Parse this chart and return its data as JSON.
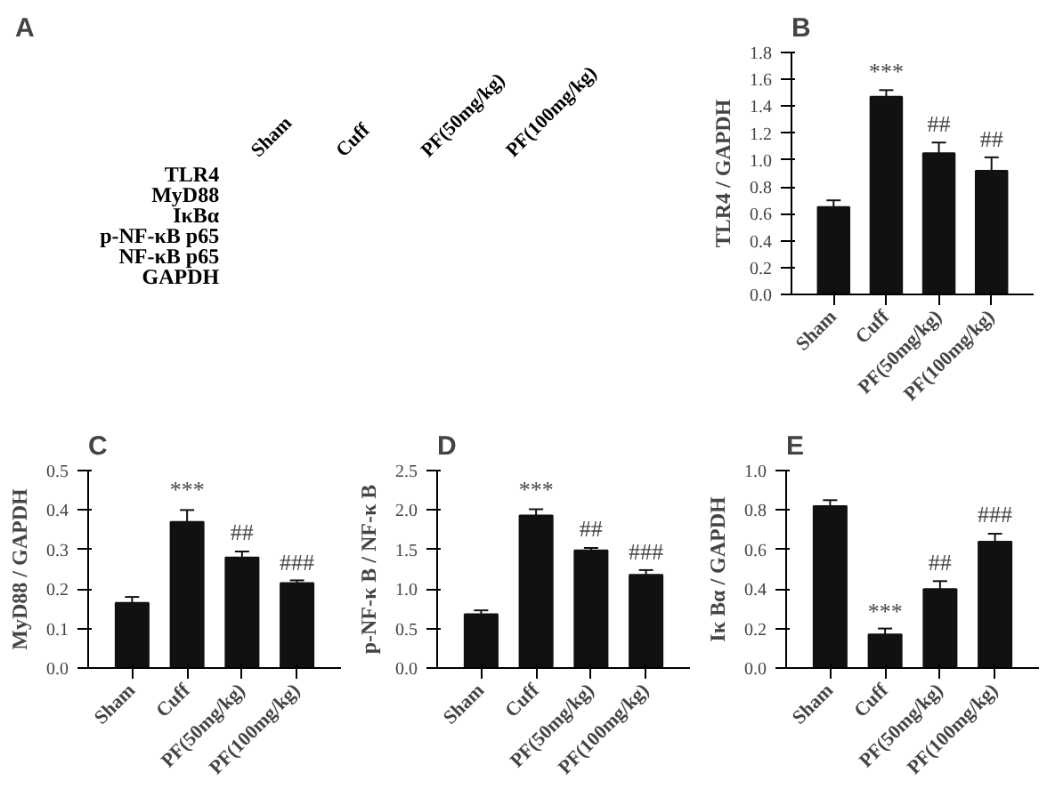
{
  "chart_data": [
    {
      "type": "other",
      "title": "A",
      "categories": [
        "Sham",
        "Cuff",
        "PF(50mg/kg)",
        "PF(100mg/kg)"
      ],
      "y_categories": [
        "TLR4",
        "MyD88",
        "IκBα",
        "p-NF-κB p65",
        "NF-κB p65",
        "GAPDH"
      ]
    },
    {
      "type": "bar",
      "title": "B",
      "ylabel": "TLR4 / GAPDH",
      "categories": [
        "Sham",
        "Cuff",
        "PF(50mg/kg)",
        "PF(100mg/kg)"
      ],
      "values": [
        0.65,
        1.47,
        1.05,
        0.92
      ],
      "errors": [
        0.05,
        0.05,
        0.08,
        0.1
      ],
      "color": "#111111",
      "ylim": [
        0,
        1.8
      ],
      "yticks": [
        {
          "value": 0,
          "label": "0.0"
        },
        0.2,
        0.4,
        0.6,
        0.8,
        {
          "value": 1,
          "label": "1.0"
        },
        1.2,
        1.4,
        1.6,
        1.8
      ],
      "grid": false,
      "annotations": [
        {
          "text": "***",
          "x": "Cuff",
          "y": 1.56
        },
        {
          "text": "##",
          "x": "PF(50mg/kg)",
          "y": 1.17
        },
        {
          "text": "##",
          "x": "PF(100mg/kg)",
          "y": 1.06
        }
      ]
    },
    {
      "type": "bar",
      "title": "C",
      "ylabel": "MyD88 / GAPDH",
      "categories": [
        "Sham",
        "Cuff",
        "PF(50mg/kg)",
        "PF(100mg/kg)"
      ],
      "values": [
        0.165,
        0.37,
        0.28,
        0.215
      ],
      "errors": [
        0.015,
        0.03,
        0.015,
        0.007
      ],
      "color": "#111111",
      "ylim": [
        0,
        0.5
      ],
      "yticks": [
        {
          "value": 0,
          "label": "0.0"
        },
        0.1,
        0.2,
        0.3,
        0.4,
        0.5
      ],
      "grid": false,
      "annotations": [
        {
          "text": "***",
          "x": "Cuff",
          "y": 0.42
        },
        {
          "text": "##",
          "x": "PF(50mg/kg)",
          "y": 0.31
        },
        {
          "text": "###",
          "x": "PF(100mg/kg)",
          "y": 0.235
        }
      ]
    },
    {
      "type": "bar",
      "title": "D",
      "ylabel": "p-NF-κ B / NF-κ B",
      "categories": [
        "Sham",
        "Cuff",
        "PF(50mg/kg)",
        "PF(100mg/kg)"
      ],
      "values": [
        0.68,
        1.93,
        1.49,
        1.18
      ],
      "errors": [
        0.05,
        0.08,
        0.03,
        0.06
      ],
      "color": "#111111",
      "ylim": [
        0,
        2.5
      ],
      "yticks": [
        {
          "value": 0,
          "label": "0.0"
        },
        0.5,
        {
          "value": 1,
          "label": "1.0"
        },
        1.5,
        {
          "value": 2,
          "label": "2.0"
        },
        2.5
      ],
      "grid": false,
      "annotations": [
        {
          "text": "***",
          "x": "Cuff",
          "y": 2.1
        },
        {
          "text": "##",
          "x": "PF(50mg/kg)",
          "y": 1.6
        },
        {
          "text": "###",
          "x": "PF(100mg/kg)",
          "y": 1.31
        }
      ]
    },
    {
      "type": "bar",
      "title": "E",
      "ylabel": "Iκ Bα / GAPDH",
      "categories": [
        "Sham",
        "Cuff",
        "PF(50mg/kg)",
        "PF(100mg/kg)"
      ],
      "values": [
        0.82,
        0.17,
        0.4,
        0.64
      ],
      "errors": [
        0.03,
        0.03,
        0.04,
        0.04
      ],
      "color": "#111111",
      "ylim": [
        0,
        1
      ],
      "yticks": [
        {
          "value": 0,
          "label": "0.0"
        },
        0.2,
        0.4,
        0.6,
        0.8,
        {
          "value": 1,
          "label": "1.0"
        }
      ],
      "grid": false,
      "annotations": [
        {
          "text": "***",
          "x": "Cuff",
          "y": 0.22
        },
        {
          "text": "##",
          "x": "PF(50mg/kg)",
          "y": 0.47
        },
        {
          "text": "###",
          "x": "PF(100mg/kg)",
          "y": 0.71
        }
      ]
    }
  ]
}
